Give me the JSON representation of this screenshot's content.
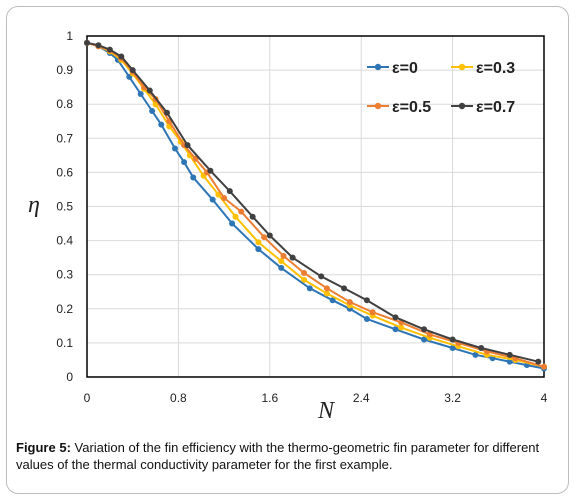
{
  "chart_data": {
    "type": "line",
    "title": "",
    "xlabel": "N",
    "ylabel": "η",
    "xlim": [
      0,
      4
    ],
    "ylim": [
      0,
      1
    ],
    "xticks": [
      "0",
      "0.8",
      "1.6",
      "2.4",
      "3.2",
      "4"
    ],
    "yticks": [
      "0",
      "0.1",
      "0.2",
      "0.3",
      "0.4",
      "0.5",
      "0.6",
      "0.7",
      "0.8",
      "0.9",
      "1"
    ],
    "grid": true,
    "legend_position": "top-right",
    "series": [
      {
        "name": "ε=0",
        "color": "#2e75b6",
        "x": [
          0,
          0.1,
          0.2,
          0.27,
          0.37,
          0.47,
          0.57,
          0.65,
          0.77,
          0.85,
          0.93,
          1.1,
          1.27,
          1.5,
          1.7,
          1.95,
          2.15,
          2.3,
          2.45,
          2.7,
          2.95,
          3.2,
          3.4,
          3.55,
          3.7,
          3.85,
          4
        ],
        "y": [
          0.98,
          0.97,
          0.95,
          0.93,
          0.88,
          0.83,
          0.78,
          0.74,
          0.67,
          0.63,
          0.585,
          0.52,
          0.45,
          0.375,
          0.32,
          0.26,
          0.225,
          0.2,
          0.17,
          0.14,
          0.11,
          0.085,
          0.065,
          0.055,
          0.045,
          0.035,
          0.025
        ]
      },
      {
        "name": "ε=0.3",
        "color": "#ffc000",
        "x": [
          0,
          0.1,
          0.2,
          0.3,
          0.4,
          0.5,
          0.6,
          0.72,
          0.82,
          0.9,
          1.02,
          1.15,
          1.3,
          1.5,
          1.7,
          1.9,
          2.1,
          2.3,
          2.5,
          2.75,
          3.0,
          3.25,
          3.5,
          3.75,
          4
        ],
        "y": [
          0.98,
          0.97,
          0.955,
          0.93,
          0.89,
          0.845,
          0.8,
          0.735,
          0.69,
          0.65,
          0.59,
          0.535,
          0.47,
          0.395,
          0.34,
          0.285,
          0.245,
          0.21,
          0.18,
          0.145,
          0.115,
          0.09,
          0.065,
          0.05,
          0.03
        ]
      },
      {
        "name": "ε=0.5",
        "color": "#ed7d31",
        "x": [
          0,
          0.1,
          0.2,
          0.3,
          0.4,
          0.5,
          0.6,
          0.72,
          0.85,
          0.95,
          1.05,
          1.2,
          1.35,
          1.55,
          1.72,
          1.9,
          2.1,
          2.3,
          2.5,
          2.75,
          3.0,
          3.25,
          3.5,
          3.75,
          4
        ],
        "y": [
          0.98,
          0.97,
          0.958,
          0.935,
          0.895,
          0.85,
          0.815,
          0.75,
          0.68,
          0.64,
          0.6,
          0.525,
          0.485,
          0.41,
          0.355,
          0.305,
          0.26,
          0.22,
          0.19,
          0.16,
          0.125,
          0.1,
          0.075,
          0.055,
          0.03
        ]
      },
      {
        "name": "ε=0.7",
        "color": "#404040",
        "x": [
          0,
          0.1,
          0.2,
          0.3,
          0.4,
          0.55,
          0.7,
          0.88,
          1.08,
          1.25,
          1.45,
          1.6,
          1.8,
          2.05,
          2.25,
          2.45,
          2.7,
          2.95,
          3.2,
          3.45,
          3.7,
          3.95
        ],
        "y": [
          0.98,
          0.973,
          0.96,
          0.94,
          0.9,
          0.84,
          0.775,
          0.68,
          0.605,
          0.545,
          0.47,
          0.415,
          0.35,
          0.295,
          0.26,
          0.225,
          0.175,
          0.14,
          0.11,
          0.085,
          0.065,
          0.045
        ]
      }
    ]
  },
  "caption": {
    "label": "Figure 5:",
    "text": " Variation of the fin efficiency with the thermo-geometric fin parameter for different values of the thermal conductivity parameter for the first example."
  }
}
